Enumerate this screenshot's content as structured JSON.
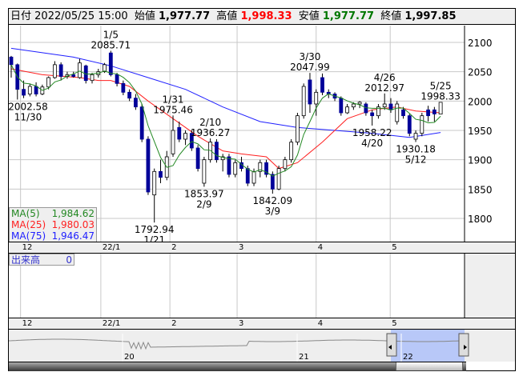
{
  "header": {
    "date_label": "日付",
    "date_value": "2022/05/25 15:00",
    "open_label": "始値",
    "open_value": "1,977.77",
    "high_label": "高値",
    "high_value": "1,998.33",
    "low_label": "安値",
    "low_value": "1,977.77",
    "close_label": "終値",
    "close_value": "1,997.85"
  },
  "colors": {
    "up_fill": "#ffffff",
    "down_fill": "#000099",
    "ma5": "#228822",
    "ma25": "#ff2020",
    "ma75": "#2020ff",
    "high": "#ff0000",
    "low": "#007700",
    "grid": "#c8c8c8",
    "navigator_selection": "#b8c8f8"
  },
  "ma_legend": [
    {
      "label": "MA(5)",
      "value": "1,984.62",
      "color": "#228822"
    },
    {
      "label": "MA(25)",
      "value": "1,980.03",
      "color": "#ff2020"
    },
    {
      "label": "MA(75)",
      "value": "1,946.47",
      "color": "#2020ff"
    }
  ],
  "volume": {
    "label": "出来高",
    "value": "0"
  },
  "navigator": {
    "year_labels": [
      "20",
      "21",
      "22"
    ]
  },
  "chart_data": {
    "type": "candlestick",
    "y_ticks": [
      2100,
      2050,
      2000,
      1950,
      1900,
      1850,
      1800
    ],
    "ylim": [
      1762,
      2129
    ],
    "grid": true,
    "months": [
      {
        "label": "12",
        "index": 1.5
      },
      {
        "label": "22/1",
        "index": 14.4
      },
      {
        "label": "2",
        "index": 25.5
      },
      {
        "label": "3",
        "index": 36.3
      },
      {
        "label": "4",
        "index": 49
      },
      {
        "label": "5",
        "index": 60.9
      }
    ],
    "ohlc": [
      [
        2075,
        2077,
        2040,
        2062
      ],
      [
        2062,
        2064,
        2002.58,
        2020
      ],
      [
        2020,
        2035,
        2005,
        2010
      ],
      [
        2012,
        2030,
        2008,
        2025
      ],
      [
        2025,
        2032,
        2008,
        2012
      ],
      [
        2012,
        2028,
        2010,
        2024
      ],
      [
        2024,
        2042,
        2020,
        2040
      ],
      [
        2040,
        2068,
        2038,
        2062
      ],
      [
        2062,
        2066,
        2035,
        2042
      ],
      [
        2042,
        2050,
        2038,
        2045
      ],
      [
        2045,
        2050,
        2040,
        2042
      ],
      [
        2040,
        2072,
        2038,
        2065
      ],
      [
        2060,
        2062,
        2030,
        2035
      ],
      [
        2035,
        2048,
        2030,
        2045
      ],
      [
        2045,
        2055,
        2040,
        2050
      ],
      [
        2050,
        2065,
        2048,
        2062
      ],
      [
        2082,
        2085.71,
        2042,
        2045
      ],
      [
        2045,
        2048,
        2025,
        2030
      ],
      [
        2030,
        2035,
        2010,
        2015
      ],
      [
        2015,
        2020,
        2000,
        2005
      ],
      [
        2005,
        2012,
        1985,
        1990
      ],
      [
        1990,
        1995,
        1930,
        1935
      ],
      [
        1935,
        1940,
        1840,
        1845
      ],
      [
        1840,
        1885,
        1792.94,
        1880
      ],
      [
        1880,
        1900,
        1860,
        1870
      ],
      [
        1870,
        1915,
        1865,
        1905
      ],
      [
        1910,
        1975.46,
        1905,
        1950
      ],
      [
        1955,
        1965,
        1930,
        1935
      ],
      [
        1935,
        1950,
        1925,
        1945
      ],
      [
        1945,
        1950,
        1915,
        1920
      ],
      [
        1920,
        1925,
        1880,
        1885
      ],
      [
        1860,
        1905,
        1853.97,
        1900
      ],
      [
        1900,
        1936.27,
        1895,
        1930
      ],
      [
        1930,
        1935,
        1895,
        1900
      ],
      [
        1900,
        1910,
        1880,
        1905
      ],
      [
        1905,
        1910,
        1870,
        1875
      ],
      [
        1875,
        1900,
        1870,
        1895
      ],
      [
        1895,
        1905,
        1880,
        1885
      ],
      [
        1885,
        1890,
        1855,
        1860
      ],
      [
        1860,
        1885,
        1855,
        1880
      ],
      [
        1880,
        1900,
        1870,
        1895
      ],
      [
        1895,
        1900,
        1870,
        1875
      ],
      [
        1875,
        1880,
        1842.09,
        1850
      ],
      [
        1850,
        1890,
        1848,
        1885
      ],
      [
        1885,
        1905,
        1880,
        1900
      ],
      [
        1900,
        1935,
        1895,
        1930
      ],
      [
        1930,
        1980,
        1925,
        1975
      ],
      [
        1975,
        2030,
        1970,
        2025
      ],
      [
        2036,
        2047.99,
        1980,
        1995
      ],
      [
        1995,
        2020,
        1975,
        2015
      ],
      [
        2040,
        2047,
        2010,
        2015
      ],
      [
        2015,
        2020,
        2005,
        2012
      ],
      [
        2012,
        2015,
        2000,
        2005
      ],
      [
        2005,
        2008,
        1975,
        1980
      ],
      [
        1980,
        1995,
        1978,
        1990
      ],
      [
        1990,
        1998,
        1985,
        1995
      ],
      [
        1995,
        2000,
        1988,
        1998
      ],
      [
        1995,
        1998,
        1975,
        1980
      ],
      [
        1980,
        1985,
        1958.22,
        1975
      ],
      [
        1975,
        1995,
        1970,
        1990
      ],
      [
        1990,
        2012.97,
        1985,
        1995
      ],
      [
        1995,
        2005,
        1980,
        1985
      ],
      [
        1965,
        2000,
        1960,
        1995
      ],
      [
        1985,
        1990,
        1970,
        1975
      ],
      [
        1975,
        1978,
        1940,
        1945
      ],
      [
        1935,
        1950,
        1930.18,
        1945
      ],
      [
        1945,
        1980,
        1940,
        1975
      ],
      [
        1985,
        1992,
        1965,
        1975
      ],
      [
        1985,
        1990,
        1965,
        1978
      ],
      [
        1977.77,
        1998.33,
        1977.77,
        1997.85
      ]
    ],
    "ma25": [
      [
        0,
        2055
      ],
      [
        5,
        2045
      ],
      [
        11,
        2040
      ],
      [
        14,
        2035
      ],
      [
        16,
        2035
      ],
      [
        19,
        2025
      ],
      [
        22,
        2000
      ],
      [
        26,
        1970
      ],
      [
        30,
        1940
      ],
      [
        34,
        1915
      ],
      [
        37,
        1910
      ],
      [
        41,
        1905
      ],
      [
        43,
        1885
      ],
      [
        46,
        1895
      ],
      [
        50,
        1930
      ],
      [
        54,
        1970
      ],
      [
        58,
        1985
      ],
      [
        62,
        1990
      ],
      [
        65,
        1983
      ],
      [
        69,
        1980.03
      ]
    ],
    "ma75": [
      [
        0,
        2090
      ],
      [
        10,
        2075
      ],
      [
        16,
        2060
      ],
      [
        22,
        2040
      ],
      [
        28,
        2020
      ],
      [
        34,
        1990
      ],
      [
        40,
        1965
      ],
      [
        46,
        1955
      ],
      [
        52,
        1950
      ],
      [
        58,
        1945
      ],
      [
        64,
        1938
      ],
      [
        69,
        1946.47
      ]
    ],
    "annotations": [
      {
        "index": 1,
        "date": "11/30",
        "value": "2002.58",
        "kind": "low"
      },
      {
        "index": 16,
        "date": "1/5",
        "value": "2085.71",
        "kind": "high"
      },
      {
        "index": 23,
        "date": "1/21",
        "value": "1792.94",
        "kind": "low"
      },
      {
        "index": 26,
        "date": "1/31",
        "value": "1975.46",
        "kind": "high"
      },
      {
        "index": 31,
        "date": "2/9",
        "value": "1853.97",
        "kind": "low"
      },
      {
        "index": 32,
        "date": "2/10",
        "value": "1936.27",
        "kind": "high"
      },
      {
        "index": 42,
        "date": "3/9",
        "value": "1842.09",
        "kind": "low"
      },
      {
        "index": 48,
        "date": "3/30",
        "value": "2047.99",
        "kind": "high"
      },
      {
        "index": 58,
        "date": "4/20",
        "value": "1958.22",
        "kind": "low"
      },
      {
        "index": 60,
        "date": "4/26",
        "value": "2012.97",
        "kind": "high"
      },
      {
        "index": 65,
        "date": "5/12",
        "value": "1930.18",
        "kind": "low"
      },
      {
        "index": 69,
        "date": "5/25",
        "value": "1998.33",
        "kind": "high"
      }
    ]
  }
}
